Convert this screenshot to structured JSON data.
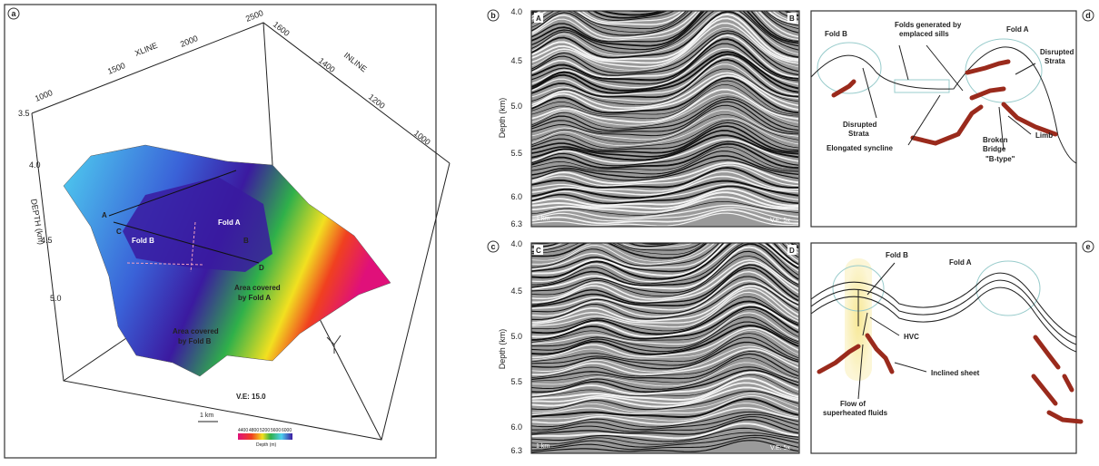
{
  "panel_a": {
    "label": "a",
    "xline_title": "XLINE",
    "xline_ticks": [
      "1000",
      "1500",
      "2000",
      "2500"
    ],
    "inline_title": "INLINE",
    "inline_ticks": [
      "1600",
      "1400",
      "1200",
      "1000"
    ],
    "depth_title": "DEPTH (km)",
    "depth_ticks": [
      "3.5",
      "4.0",
      "4.5",
      "5.0"
    ],
    "points": [
      "A",
      "C",
      "B",
      "D"
    ],
    "fold_a": "Fold A",
    "fold_b": "Fold B",
    "area_a": [
      "Area covered",
      "by Fold A"
    ],
    "area_b": [
      "Area covered",
      "by Fold B"
    ],
    "ve": "V.E: 15.0",
    "scale": "1 km",
    "colorbar_ticks": [
      "4400",
      "4800",
      "5200",
      "5600",
      "6000"
    ],
    "colorbar_title": "Depth (m)"
  },
  "panel_b": {
    "label": "b",
    "axis_title": "Depth (km)",
    "ticks": [
      "4.0",
      "4.5",
      "5.0",
      "5.5",
      "6.0",
      "6.3"
    ],
    "left": "A",
    "right": "B",
    "scale": "1 km",
    "ve": "V.E: 5x"
  },
  "panel_c": {
    "label": "c",
    "axis_title": "Depth (km)",
    "ticks": [
      "4.0",
      "4.5",
      "5.0",
      "5.5",
      "6.0",
      "6.3"
    ],
    "left": "C",
    "right": "D",
    "scale": "1 km",
    "ve": "V.E: 5x"
  },
  "panel_d": {
    "label": "d",
    "fold_b": "Fold B",
    "folds": [
      "Folds generated by",
      "emplaced sills"
    ],
    "fold_a": "Fold A",
    "disrupted_right": [
      "Disrupted",
      "Strata"
    ],
    "disrupted_left": [
      "Disrupted",
      "Strata"
    ],
    "limb": "Limb",
    "bridge": [
      "Broken",
      "Bridge"
    ],
    "btype": "\"B-type\"",
    "syncline": "Elongated syncline"
  },
  "panel_e": {
    "label": "e",
    "fold_b": "Fold B",
    "fold_a": "Fold A",
    "hvc": "HVC",
    "inclined": "Inclined sheet",
    "flow": [
      "Flow of",
      "superheated fluids"
    ]
  }
}
